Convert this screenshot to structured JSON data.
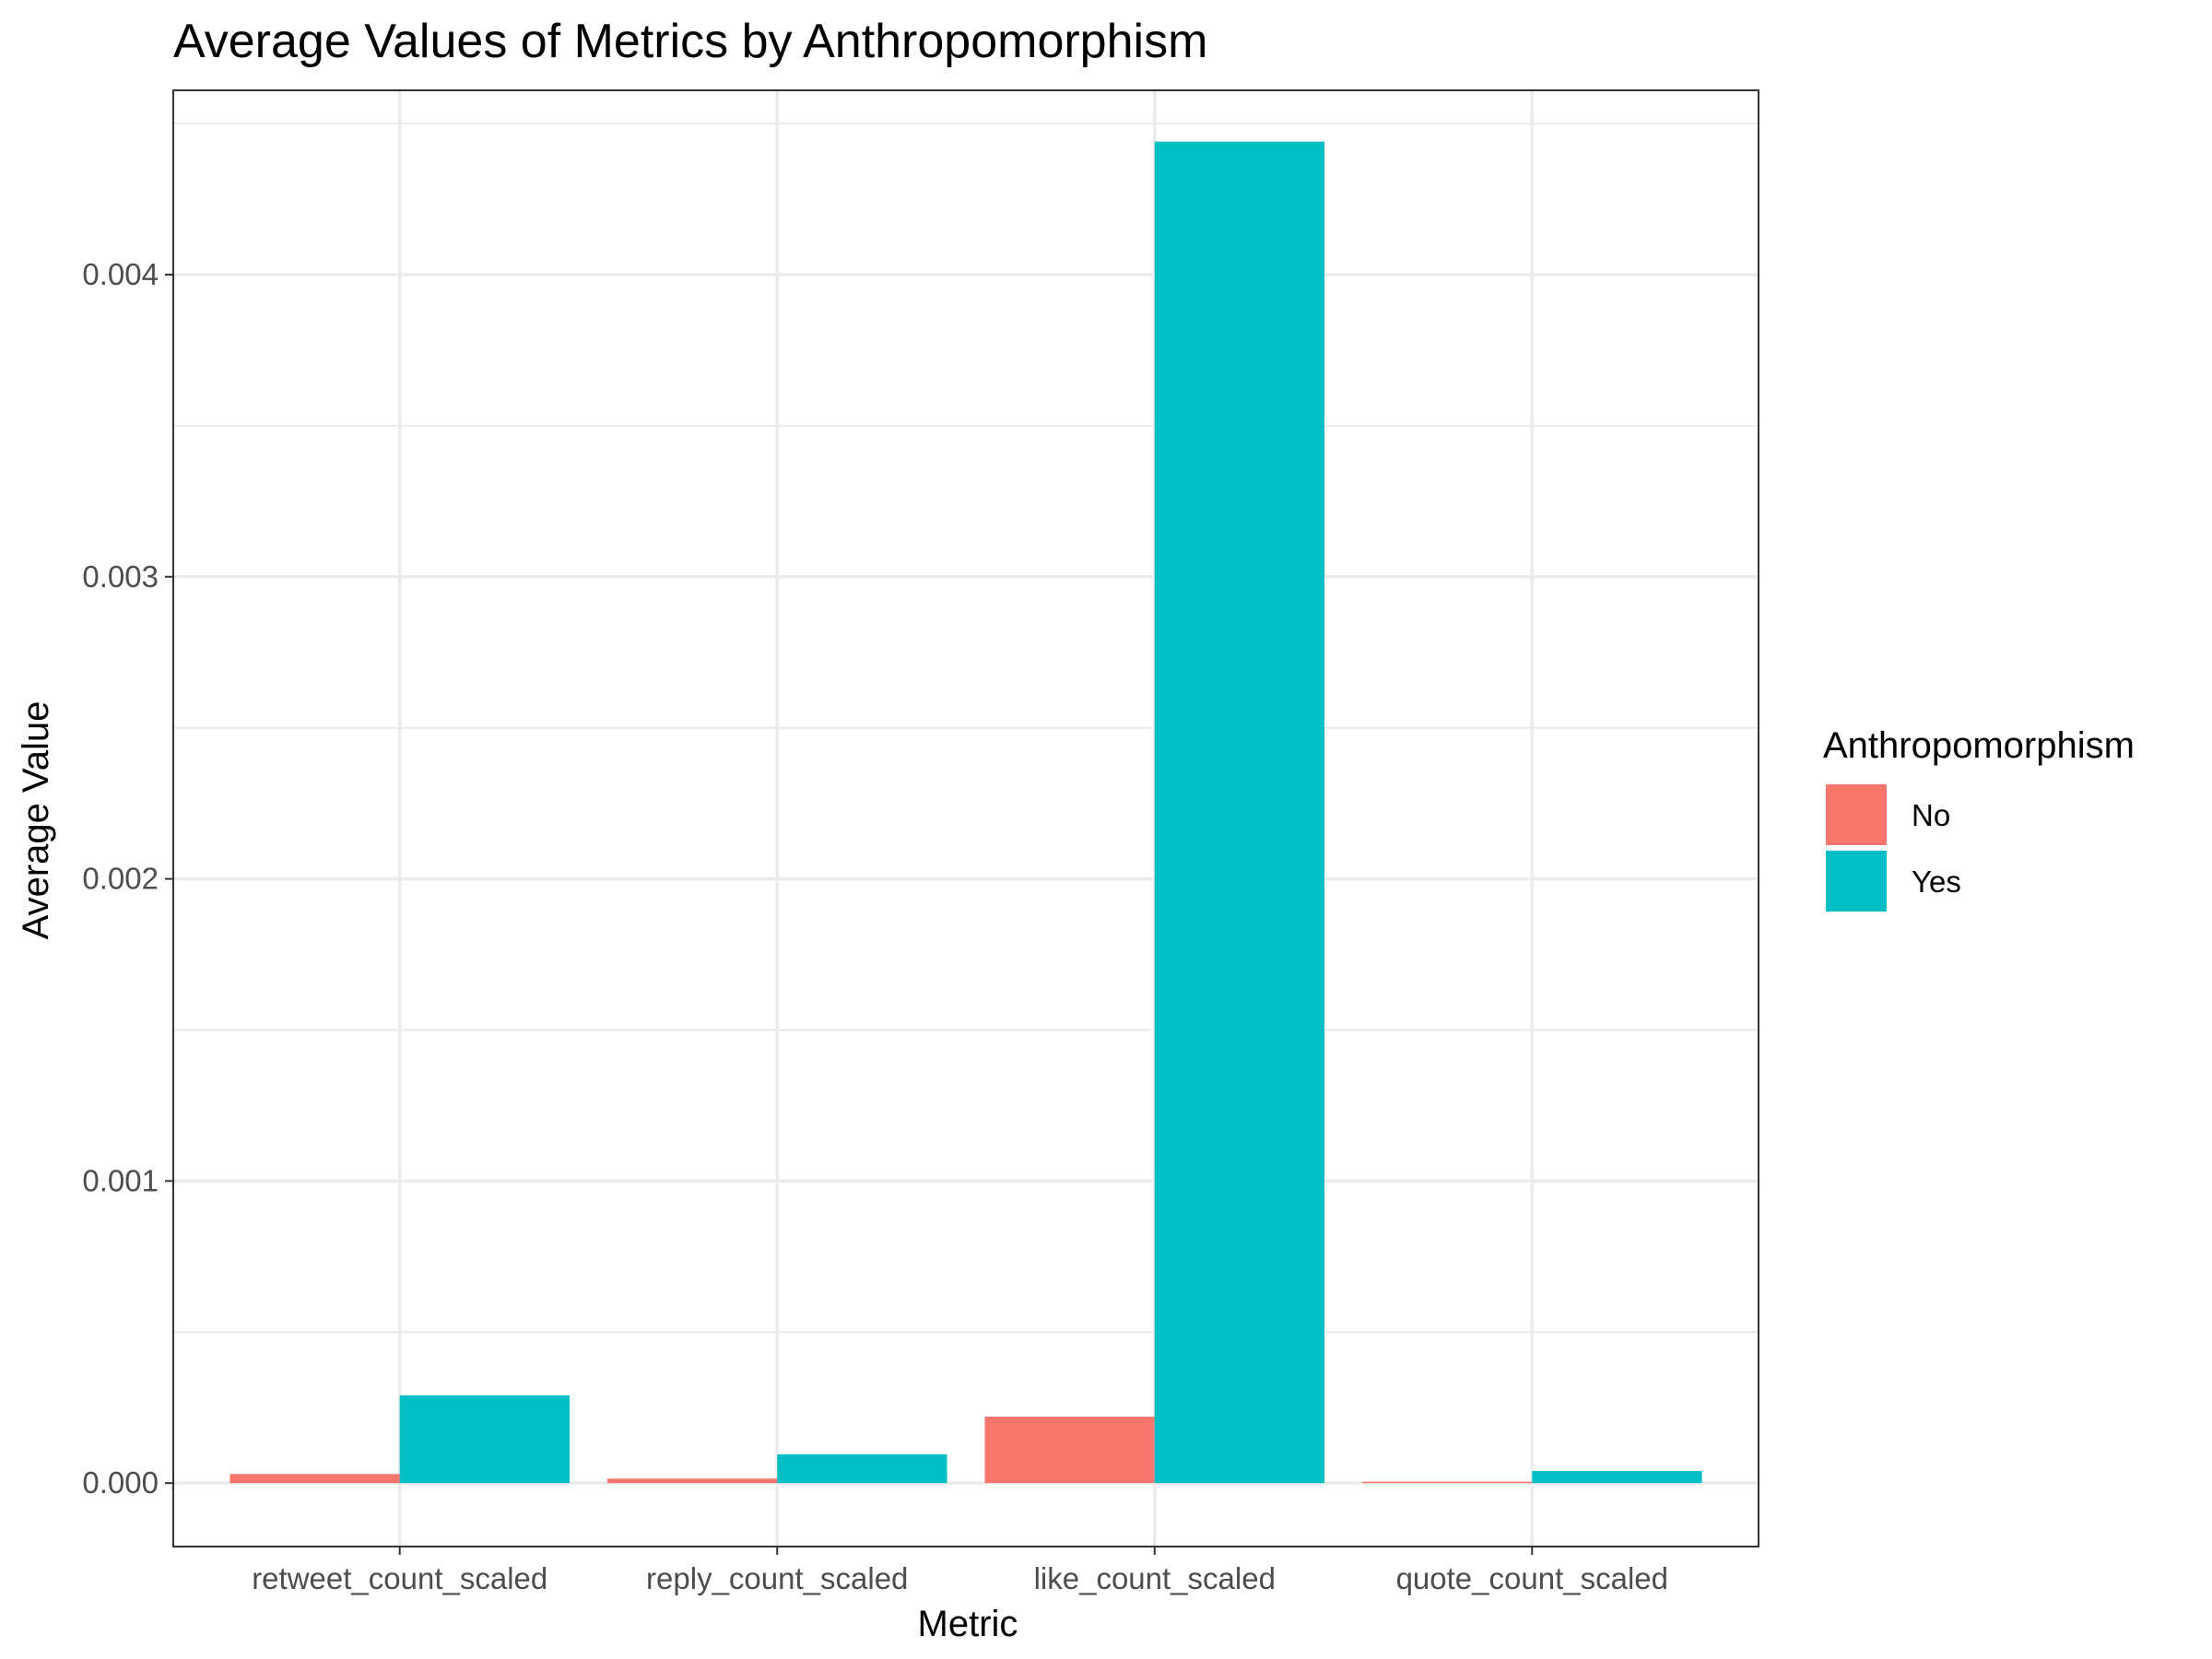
{
  "chart_data": {
    "type": "bar",
    "title": "Average Values of Metrics by Anthropomorphism",
    "xlabel": "Metric",
    "ylabel": "Average Value",
    "categories": [
      "retweet_count_scaled",
      "reply_count_scaled",
      "like_count_scaled",
      "quote_count_scaled"
    ],
    "series": [
      {
        "name": "No",
        "color": "#F8766D",
        "values": [
          3e-05,
          1.5e-05,
          0.00022,
          2e-06
        ]
      },
      {
        "name": "Yes",
        "color": "#00BFC4",
        "values": [
          0.00029,
          9.5e-05,
          0.00444,
          4e-05
        ]
      }
    ],
    "ylim": [
      -0.00021,
      0.00461
    ],
    "yticks": [
      0.0,
      0.001,
      0.002,
      0.003,
      0.004
    ],
    "ytick_labels": [
      "0.000",
      "0.001",
      "0.002",
      "0.003",
      "0.004"
    ],
    "grid": true,
    "legend": {
      "title": "Anthropomorphism",
      "position": "right"
    }
  }
}
